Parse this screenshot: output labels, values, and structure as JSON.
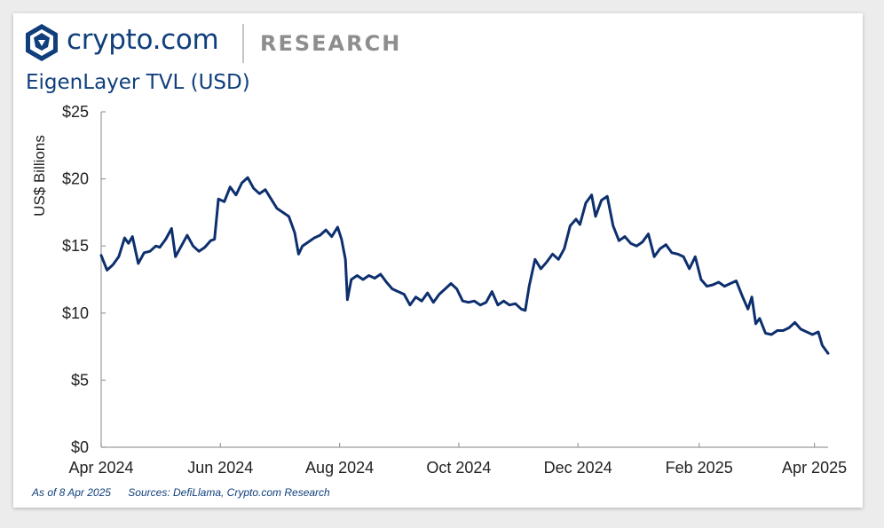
{
  "header": {
    "brand": "crypto.com",
    "section": "RESEARCH",
    "logo_icon": "lion-shield-icon",
    "brand_color": "#103f7c"
  },
  "chart_data": {
    "type": "line",
    "title": "EigenLayer TVL (USD)",
    "xlabel": "",
    "ylabel": "US$ Billions",
    "x_range": [
      "2024-04-01",
      "2025-04-08"
    ],
    "ylim": [
      0,
      25
    ],
    "yticks": [
      0,
      5,
      10,
      15,
      20,
      25
    ],
    "ytick_labels": [
      "$0",
      "$5",
      "$10",
      "$15",
      "$20",
      "$25"
    ],
    "xtick_labels": [
      "Apr 2024",
      "Jun 2024",
      "Aug 2024",
      "Oct 2024",
      "Dec 2024",
      "Feb 2025",
      "Apr 2025"
    ],
    "xtick_dates": [
      "2024-04-01",
      "2024-06-01",
      "2024-08-01",
      "2024-10-01",
      "2024-12-01",
      "2025-02-01",
      "2025-04-01"
    ],
    "grid": false,
    "legend": "none",
    "series": [
      {
        "color": "#0d2f6e",
        "points": [
          [
            "2024-04-01",
            14.3
          ],
          [
            "2024-04-04",
            13.2
          ],
          [
            "2024-04-07",
            13.6
          ],
          [
            "2024-04-10",
            14.2
          ],
          [
            "2024-04-13",
            15.6
          ],
          [
            "2024-04-15",
            15.2
          ],
          [
            "2024-04-17",
            15.7
          ],
          [
            "2024-04-20",
            13.7
          ],
          [
            "2024-04-23",
            14.5
          ],
          [
            "2024-04-26",
            14.6
          ],
          [
            "2024-04-29",
            15.0
          ],
          [
            "2024-05-01",
            14.9
          ],
          [
            "2024-05-04",
            15.5
          ],
          [
            "2024-05-07",
            16.3
          ],
          [
            "2024-05-09",
            14.2
          ],
          [
            "2024-05-12",
            15.0
          ],
          [
            "2024-05-15",
            15.8
          ],
          [
            "2024-05-18",
            15.0
          ],
          [
            "2024-05-21",
            14.6
          ],
          [
            "2024-05-24",
            14.9
          ],
          [
            "2024-05-27",
            15.4
          ],
          [
            "2024-05-29",
            15.5
          ],
          [
            "2024-05-31",
            18.5
          ],
          [
            "2024-06-03",
            18.3
          ],
          [
            "2024-06-06",
            19.4
          ],
          [
            "2024-06-09",
            18.8
          ],
          [
            "2024-06-12",
            19.7
          ],
          [
            "2024-06-15",
            20.1
          ],
          [
            "2024-06-18",
            19.3
          ],
          [
            "2024-06-21",
            18.9
          ],
          [
            "2024-06-24",
            19.2
          ],
          [
            "2024-06-27",
            18.5
          ],
          [
            "2024-06-30",
            17.8
          ],
          [
            "2024-07-03",
            17.5
          ],
          [
            "2024-07-06",
            17.2
          ],
          [
            "2024-07-09",
            16.0
          ],
          [
            "2024-07-11",
            14.4
          ],
          [
            "2024-07-13",
            15.0
          ],
          [
            "2024-07-16",
            15.3
          ],
          [
            "2024-07-19",
            15.6
          ],
          [
            "2024-07-22",
            15.8
          ],
          [
            "2024-07-25",
            16.2
          ],
          [
            "2024-07-28",
            15.7
          ],
          [
            "2024-07-31",
            16.4
          ],
          [
            "2024-08-02",
            15.5
          ],
          [
            "2024-08-04",
            14.0
          ],
          [
            "2024-08-05",
            11.0
          ],
          [
            "2024-08-07",
            12.5
          ],
          [
            "2024-08-10",
            12.8
          ],
          [
            "2024-08-13",
            12.5
          ],
          [
            "2024-08-16",
            12.8
          ],
          [
            "2024-08-19",
            12.6
          ],
          [
            "2024-08-22",
            12.9
          ],
          [
            "2024-08-25",
            12.3
          ],
          [
            "2024-08-28",
            11.8
          ],
          [
            "2024-08-31",
            11.6
          ],
          [
            "2024-09-03",
            11.4
          ],
          [
            "2024-09-06",
            10.6
          ],
          [
            "2024-09-09",
            11.2
          ],
          [
            "2024-09-12",
            10.9
          ],
          [
            "2024-09-15",
            11.5
          ],
          [
            "2024-09-18",
            10.8
          ],
          [
            "2024-09-21",
            11.4
          ],
          [
            "2024-09-24",
            11.8
          ],
          [
            "2024-09-27",
            12.2
          ],
          [
            "2024-09-30",
            11.8
          ],
          [
            "2024-10-03",
            10.9
          ],
          [
            "2024-10-06",
            10.8
          ],
          [
            "2024-10-09",
            10.9
          ],
          [
            "2024-10-12",
            10.6
          ],
          [
            "2024-10-15",
            10.8
          ],
          [
            "2024-10-18",
            11.6
          ],
          [
            "2024-10-21",
            10.6
          ],
          [
            "2024-10-24",
            10.9
          ],
          [
            "2024-10-27",
            10.6
          ],
          [
            "2024-10-30",
            10.7
          ],
          [
            "2024-11-02",
            10.3
          ],
          [
            "2024-11-04",
            10.2
          ],
          [
            "2024-11-06",
            12.0
          ],
          [
            "2024-11-09",
            14.0
          ],
          [
            "2024-11-12",
            13.3
          ],
          [
            "2024-11-15",
            13.8
          ],
          [
            "2024-11-18",
            14.4
          ],
          [
            "2024-11-21",
            14.0
          ],
          [
            "2024-11-24",
            14.8
          ],
          [
            "2024-11-27",
            16.5
          ],
          [
            "2024-11-30",
            17.0
          ],
          [
            "2024-12-02",
            16.6
          ],
          [
            "2024-12-05",
            18.2
          ],
          [
            "2024-12-08",
            18.8
          ],
          [
            "2024-12-10",
            17.2
          ],
          [
            "2024-12-13",
            18.4
          ],
          [
            "2024-12-16",
            18.7
          ],
          [
            "2024-12-19",
            16.5
          ],
          [
            "2024-12-22",
            15.4
          ],
          [
            "2024-12-25",
            15.7
          ],
          [
            "2024-12-28",
            15.2
          ],
          [
            "2024-12-31",
            15.0
          ],
          [
            "2025-01-03",
            15.3
          ],
          [
            "2025-01-06",
            15.9
          ],
          [
            "2025-01-09",
            14.2
          ],
          [
            "2025-01-12",
            14.8
          ],
          [
            "2025-01-15",
            15.1
          ],
          [
            "2025-01-18",
            14.5
          ],
          [
            "2025-01-21",
            14.4
          ],
          [
            "2025-01-24",
            14.2
          ],
          [
            "2025-01-27",
            13.3
          ],
          [
            "2025-01-30",
            14.2
          ],
          [
            "2025-02-02",
            12.5
          ],
          [
            "2025-02-05",
            12.0
          ],
          [
            "2025-02-08",
            12.1
          ],
          [
            "2025-02-11",
            12.3
          ],
          [
            "2025-02-14",
            12.0
          ],
          [
            "2025-02-17",
            12.2
          ],
          [
            "2025-02-20",
            12.4
          ],
          [
            "2025-02-23",
            11.3
          ],
          [
            "2025-02-26",
            10.3
          ],
          [
            "2025-02-28",
            11.2
          ],
          [
            "2025-03-02",
            9.2
          ],
          [
            "2025-03-04",
            9.6
          ],
          [
            "2025-03-07",
            8.5
          ],
          [
            "2025-03-10",
            8.4
          ],
          [
            "2025-03-13",
            8.7
          ],
          [
            "2025-03-16",
            8.7
          ],
          [
            "2025-03-19",
            8.9
          ],
          [
            "2025-03-22",
            9.3
          ],
          [
            "2025-03-25",
            8.8
          ],
          [
            "2025-03-28",
            8.6
          ],
          [
            "2025-03-31",
            8.4
          ],
          [
            "2025-04-03",
            8.6
          ],
          [
            "2025-04-05",
            7.6
          ],
          [
            "2025-04-08",
            7.0
          ]
        ]
      }
    ]
  },
  "footer": {
    "as_of": "As of 8 Apr 2025",
    "sources": "Sources: DefiLlama, Crypto.com Research"
  }
}
